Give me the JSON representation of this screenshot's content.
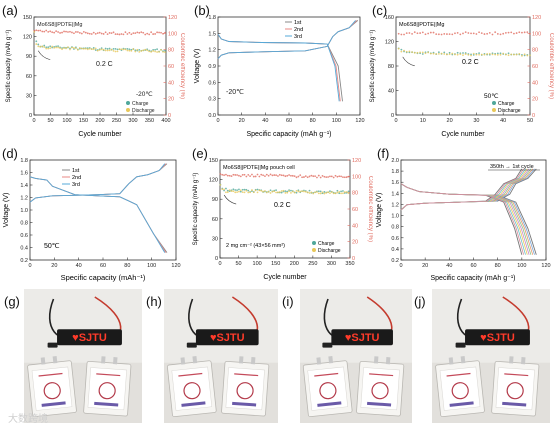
{
  "panels": {
    "a": {
      "letter": "(a)",
      "label": "Mo6S8||PDTE||Mg",
      "rate": "0.2 C",
      "temp": "-20℃",
      "ylabel": "Specific capacity (mAh g⁻¹)",
      "y2label": "Coulombic efficiency (%)",
      "xlabel": "Cycle number",
      "xticks": [
        "0",
        "50",
        "100",
        "150",
        "200",
        "250",
        "300",
        "350",
        "400"
      ],
      "yticks": [
        "0",
        "30",
        "60",
        "90",
        "120",
        "150"
      ],
      "y2ticks": [
        "0",
        "20",
        "40",
        "60",
        "80",
        "100",
        "120"
      ],
      "legend": [
        "Charge",
        "Discharge"
      ]
    },
    "b": {
      "letter": "(b)",
      "temp": "-20℃",
      "ylabel": "Voltage (V)",
      "xlabel": "Specific capacity (mAh g⁻¹)",
      "xticks": [
        "0",
        "20",
        "40",
        "60",
        "80",
        "100",
        "120"
      ],
      "yticks": [
        "0.0",
        "0.3",
        "0.6",
        "0.9",
        "1.2",
        "1.5",
        "1.8"
      ],
      "legend": [
        "1st",
        "2nd",
        "3rd"
      ]
    },
    "c": {
      "letter": "(c)",
      "label": "Mo6S8||PDTE||Mg",
      "rate": "0.2 C",
      "temp": "50℃",
      "ylabel": "Specific capacity (mAh g⁻¹)",
      "y2label": "Coulombic efficiency (%)",
      "xlabel": "Cycle number",
      "xticks": [
        "0",
        "10",
        "20",
        "30",
        "40",
        "50"
      ],
      "yticks": [
        "0",
        "40",
        "80",
        "120",
        "160"
      ],
      "y2ticks": [
        "0",
        "20",
        "40",
        "60",
        "80",
        "100",
        "120"
      ],
      "legend": [
        "Charge",
        "Discharge"
      ]
    },
    "d": {
      "letter": "(d)",
      "temp": "50℃",
      "ylabel": "Voltage (V)",
      "xlabel": "Specific capacity (mAh⁻¹)",
      "xticks": [
        "0",
        "20",
        "40",
        "60",
        "80",
        "100",
        "120"
      ],
      "yticks": [
        "0.2",
        "0.4",
        "0.6",
        "0.8",
        "1.0",
        "1.2",
        "1.4",
        "1.6",
        "1.8"
      ],
      "legend": [
        "1st",
        "2nd",
        "3rd"
      ]
    },
    "e": {
      "letter": "(e)",
      "label": "Mo6S8||PDTE||Mg  pouch cell",
      "rate": "0.2 C",
      "loading": "2 mg cm⁻²  (43×56 mm²)",
      "ylabel": "Specific capacity (mAh g⁻¹)",
      "y2label": "Coulombic efficiency (%)",
      "xlabel": "Cycle number",
      "xticks": [
        "0",
        "50",
        "100",
        "150",
        "200",
        "250",
        "300",
        "350"
      ],
      "yticks": [
        "0",
        "30",
        "60",
        "90",
        "120",
        "150"
      ],
      "y2ticks": [
        "0",
        "20",
        "40",
        "60",
        "80",
        "100",
        "120"
      ],
      "legend": [
        "Charge",
        "Discharge"
      ]
    },
    "f": {
      "letter": "(f)",
      "annotation": "350th → 1st cycle",
      "ylabel": "Voltage (V)",
      "xlabel": "Specific capacity (mAh g⁻¹)",
      "xticks": [
        "0",
        "20",
        "40",
        "60",
        "80",
        "100",
        "120"
      ],
      "yticks": [
        "0.2",
        "0.4",
        "0.6",
        "0.8",
        "1.0",
        "1.2",
        "1.4",
        "1.6",
        "1.8",
        "2.0"
      ]
    }
  },
  "photos": {
    "g": {
      "letter": "(g)",
      "display": "♥SJTU"
    },
    "h": {
      "letter": "(h)",
      "display": "♥SJTU"
    },
    "i": {
      "letter": "(i)",
      "display": "♥SJTU"
    },
    "j": {
      "letter": "(j)",
      "display": "♥SJTU"
    }
  },
  "watermark": "大数跨境",
  "colors": {
    "charge": "#4fa79a",
    "discharge": "#e8c85a",
    "ce": "#e06b5f",
    "first": "#888888",
    "second": "#e88a86",
    "third": "#55a9d8",
    "axis_right": "#e06b5f"
  },
  "chart_data": [
    {
      "panel": "a",
      "type": "scatter",
      "xlabel": "Cycle number",
      "ylabel": "Specific capacity (mAh g⁻¹)",
      "xlim": [
        0,
        400
      ],
      "ylim": [
        0,
        150
      ],
      "y2lim": [
        0,
        120
      ],
      "series": [
        {
          "name": "Charge",
          "x": [
            1,
            5,
            20,
            50,
            100,
            150,
            200,
            250,
            300,
            350,
            400
          ],
          "y": [
            128,
            112,
            106,
            104,
            103,
            102,
            101,
            100,
            100,
            99,
            99
          ]
        },
        {
          "name": "Discharge",
          "x": [
            1,
            5,
            20,
            50,
            100,
            150,
            200,
            250,
            300,
            350,
            400
          ],
          "y": [
            126,
            110,
            104,
            103,
            102,
            101,
            100,
            99,
            99,
            98,
            98
          ]
        },
        {
          "name": "Coulombic efficiency",
          "axis": "right",
          "x": [
            1,
            50,
            100,
            150,
            200,
            250,
            300,
            350,
            400
          ],
          "y": [
            103,
            102,
            101,
            101,
            100,
            100,
            100,
            100,
            100
          ]
        }
      ]
    },
    {
      "panel": "b",
      "type": "line",
      "xlabel": "Specific capacity (mAh g⁻¹)",
      "ylabel": "Voltage (V)",
      "xlim": [
        0,
        130
      ],
      "ylim": [
        0,
        2.0
      ],
      "series": [
        {
          "name": "1st charge",
          "x": [
            0,
            3,
            10,
            40,
            80,
            100,
            105,
            110,
            120,
            128
          ],
          "y": [
            1.15,
            1.22,
            1.27,
            1.29,
            1.31,
            1.4,
            1.6,
            1.7,
            1.78,
            1.93
          ]
        },
        {
          "name": "1st discharge",
          "x": [
            0,
            3,
            10,
            40,
            80,
            100,
            110,
            114
          ],
          "y": [
            1.65,
            1.55,
            1.5,
            1.48,
            1.47,
            1.45,
            1.0,
            0.28
          ]
        },
        {
          "name": "2nd charge",
          "x": [
            0,
            3,
            10,
            40,
            80,
            100,
            105,
            110,
            120,
            127
          ],
          "y": [
            1.15,
            1.22,
            1.27,
            1.29,
            1.31,
            1.4,
            1.6,
            1.7,
            1.78,
            1.93
          ]
        },
        {
          "name": "2nd discharge",
          "x": [
            0,
            3,
            10,
            40,
            80,
            100,
            108,
            112
          ],
          "y": [
            1.65,
            1.55,
            1.5,
            1.48,
            1.47,
            1.45,
            1.0,
            0.28
          ]
        },
        {
          "name": "3rd charge",
          "x": [
            0,
            3,
            10,
            40,
            80,
            100,
            105,
            110,
            120,
            126
          ],
          "y": [
            1.15,
            1.22,
            1.27,
            1.29,
            1.31,
            1.4,
            1.6,
            1.7,
            1.78,
            1.93
          ]
        },
        {
          "name": "3rd discharge",
          "x": [
            0,
            3,
            10,
            40,
            80,
            100,
            107,
            111
          ],
          "y": [
            1.65,
            1.55,
            1.5,
            1.48,
            1.47,
            1.45,
            1.0,
            0.28
          ]
        }
      ]
    },
    {
      "panel": "c",
      "type": "scatter",
      "xlabel": "Cycle number",
      "ylabel": "Specific capacity (mAh g⁻¹)",
      "xlim": [
        0,
        50
      ],
      "ylim": [
        0,
        180
      ],
      "y2lim": [
        0,
        120
      ],
      "series": [
        {
          "name": "Charge",
          "x": [
            1,
            2,
            5,
            10,
            20,
            30,
            40,
            50
          ],
          "y": [
            122,
            119,
            116,
            114,
            113,
            112,
            112,
            111
          ]
        },
        {
          "name": "Discharge",
          "x": [
            1,
            2,
            5,
            10,
            20,
            30,
            40,
            50
          ],
          "y": [
            120,
            117,
            115,
            113,
            112,
            111,
            111,
            110
          ]
        },
        {
          "name": "Coulombic efficiency",
          "axis": "right",
          "x": [
            1,
            10,
            20,
            30,
            40,
            50
          ],
          "y": [
            100,
            100,
            100,
            100,
            100,
            100
          ]
        }
      ]
    },
    {
      "panel": "d",
      "type": "line",
      "xlabel": "Specific capacity (mAh⁻¹)",
      "ylabel": "Voltage (V)",
      "xlim": [
        0,
        130
      ],
      "ylim": [
        0.1,
        2.0
      ],
      "series": [
        {
          "name": "1st charge",
          "x": [
            0,
            5,
            20,
            40,
            60,
            80,
            88,
            95,
            105,
            115,
            122
          ],
          "y": [
            1.2,
            1.28,
            1.32,
            1.33,
            1.34,
            1.36,
            1.55,
            1.68,
            1.72,
            1.8,
            1.93
          ]
        },
        {
          "name": "1st discharge",
          "x": [
            0,
            5,
            15,
            20,
            40,
            60,
            80,
            95,
            110,
            122
          ],
          "y": [
            1.68,
            1.65,
            1.62,
            1.5,
            1.34,
            1.32,
            1.3,
            1.15,
            0.6,
            0.24
          ]
        },
        {
          "name": "2nd charge",
          "x": [
            0,
            5,
            20,
            40,
            60,
            80,
            88,
            95,
            105,
            115,
            121
          ],
          "y": [
            1.2,
            1.28,
            1.32,
            1.33,
            1.34,
            1.36,
            1.55,
            1.68,
            1.72,
            1.8,
            1.93
          ]
        },
        {
          "name": "2nd discharge",
          "x": [
            0,
            5,
            15,
            20,
            40,
            60,
            80,
            95,
            110,
            121
          ],
          "y": [
            1.68,
            1.65,
            1.62,
            1.5,
            1.34,
            1.32,
            1.3,
            1.15,
            0.6,
            0.24
          ]
        },
        {
          "name": "3rd charge",
          "x": [
            0,
            5,
            20,
            40,
            60,
            80,
            88,
            95,
            105,
            115,
            120
          ],
          "y": [
            1.2,
            1.28,
            1.32,
            1.33,
            1.34,
            1.36,
            1.55,
            1.68,
            1.72,
            1.8,
            1.93
          ]
        },
        {
          "name": "3rd discharge",
          "x": [
            0,
            5,
            15,
            20,
            40,
            60,
            80,
            95,
            110,
            120
          ],
          "y": [
            1.68,
            1.65,
            1.62,
            1.5,
            1.34,
            1.32,
            1.3,
            1.15,
            0.6,
            0.24
          ]
        }
      ]
    },
    {
      "panel": "e",
      "type": "scatter",
      "xlabel": "Cycle number",
      "ylabel": "Specific capacity (mAh g⁻¹)",
      "xlim": [
        0,
        350
      ],
      "ylim": [
        0,
        150
      ],
      "y2lim": [
        0,
        120
      ],
      "series": [
        {
          "name": "Charge",
          "x": [
            1,
            5,
            20,
            50,
            100,
            150,
            200,
            250,
            300,
            350
          ],
          "y": [
            112,
            106,
            104,
            103,
            103,
            102,
            102,
            101,
            101,
            101
          ]
        },
        {
          "name": "Discharge",
          "x": [
            1,
            5,
            20,
            50,
            100,
            150,
            200,
            250,
            300,
            350
          ],
          "y": [
            110,
            104,
            102,
            102,
            102,
            101,
            101,
            100,
            100,
            100
          ]
        },
        {
          "name": "Coulombic efficiency",
          "axis": "right",
          "x": [
            1,
            50,
            100,
            150,
            200,
            250,
            300,
            350
          ],
          "y": [
            103,
            101,
            101,
            101,
            100,
            100,
            100,
            100
          ]
        }
      ]
    },
    {
      "panel": "f",
      "type": "line",
      "xlabel": "Specific capacity (mAh g⁻¹)",
      "ylabel": "Voltage (V)",
      "xlim": [
        0,
        120
      ],
      "ylim": [
        0.2,
        2.1
      ],
      "series": [
        {
          "name": "1st cycle charge",
          "x": [
            0,
            5,
            20,
            50,
            80,
            90,
            95,
            105,
            112
          ],
          "y": [
            1.15,
            1.25,
            1.28,
            1.3,
            1.32,
            1.45,
            1.65,
            1.75,
            1.93
          ]
        },
        {
          "name": "350th cycle charge",
          "x": [
            0,
            5,
            20,
            50,
            70,
            78,
            85,
            95,
            100
          ],
          "y": [
            1.15,
            1.25,
            1.28,
            1.3,
            1.32,
            1.45,
            1.65,
            1.75,
            1.93
          ]
        },
        {
          "name": "1st cycle discharge",
          "x": [
            0,
            5,
            15,
            40,
            80,
            95,
            105,
            112
          ],
          "y": [
            1.65,
            1.58,
            1.5,
            1.45,
            1.43,
            1.3,
            0.8,
            0.3
          ]
        },
        {
          "name": "350th cycle discharge",
          "x": [
            0,
            5,
            15,
            40,
            70,
            85,
            94,
            100
          ],
          "y": [
            1.65,
            1.58,
            1.5,
            1.45,
            1.43,
            1.3,
            0.8,
            0.3
          ]
        }
      ]
    }
  ]
}
